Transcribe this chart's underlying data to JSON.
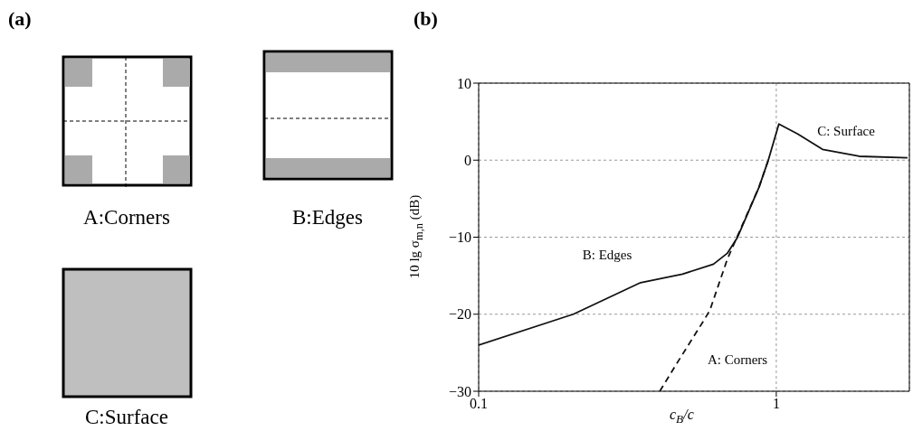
{
  "chart_data": [
    {
      "type": "other",
      "title": "(a)",
      "annotations": [
        "A:Corners",
        "B:Edges",
        "C:Surface"
      ]
    },
    {
      "type": "line",
      "title": "(b)",
      "xlabel": "c$_{B}$/c",
      "ylabel": "10 lg σ$_{m,n}$ (dB)",
      "log": "x",
      "xlim": [
        0.1,
        2.8
      ],
      "xticks": [
        0.1,
        1
      ],
      "ylim": [
        -30,
        10
      ],
      "yticks": [
        -30,
        -20,
        -10,
        0,
        10
      ],
      "grid": true,
      "marker": "none",
      "series": [
        {
          "color": "#111111",
          "line_style": "solid",
          "x": [
            0.1,
            0.208,
            0.35,
            0.484,
            0.615,
            0.684,
            0.739,
            0.875,
            0.94,
            1.02,
            1.18,
            1.43,
            1.9,
            2.76
          ],
          "values": [
            -24,
            -20,
            -15.9,
            -14.8,
            -13.5,
            -12.1,
            -10.1,
            -3.5,
            0,
            4.7,
            3.4,
            1.4,
            0.5,
            0.3
          ]
        },
        {
          "color": "#111111",
          "line_style": "dashed",
          "x": [
            0.406,
            0.47,
            0.573,
            0.598,
            0.684,
            0.73,
            0.875,
            0.94
          ],
          "values": [
            -30,
            -26,
            -20.7,
            -19.5,
            -12.9,
            -10.4,
            -3.5,
            0
          ]
        }
      ],
      "annotations": [
        "B: Edges",
        "A: Corners",
        "C: Surface"
      ]
    }
  ]
}
